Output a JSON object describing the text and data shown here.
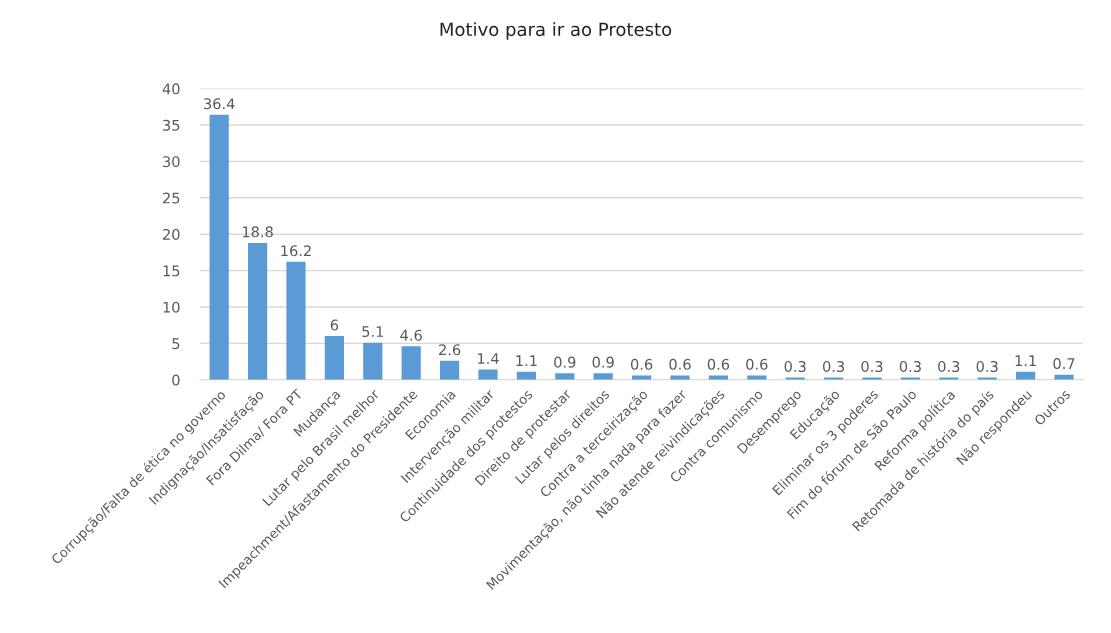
{
  "chart_data": {
    "type": "bar",
    "title": "Motivo para ir ao Protesto",
    "categories": [
      "Corrupção/Falta de ética no governo",
      "Indignação/Insatisfação",
      "Fora Dilma/ Fora PT",
      "Mudança",
      "Lutar pelo Brasil melhor",
      "Impeachment/Afastamento do Presidente",
      "Economia",
      "Intervenção militar",
      "Continuidade dos protestos",
      "Direito de protestar",
      "Lutar pelos direitos",
      "Contra a terceirização",
      "Movimentação, não tinha nada para fazer",
      "Não atende reivindicações",
      "Contra comunismo",
      "Desemprego",
      "Educação",
      "Eliminar os 3 poderes",
      "Fim do fórum de São Paulo",
      "Reforma política",
      "Retomada de história do país",
      "Não respondeu",
      "Outros"
    ],
    "values": [
      36.4,
      18.8,
      16.2,
      6,
      5.1,
      4.6,
      2.6,
      1.4,
      1.1,
      0.9,
      0.9,
      0.6,
      0.6,
      0.6,
      0.6,
      0.3,
      0.3,
      0.3,
      0.3,
      0.3,
      0.3,
      1.1,
      0.7
    ],
    "color": "#5b9bd5",
    "ylim": [
      0,
      40
    ],
    "yticks": [
      0,
      5,
      10,
      15,
      20,
      25,
      30,
      35,
      40
    ],
    "grid": "y",
    "data_labels": true,
    "legend": false
  }
}
